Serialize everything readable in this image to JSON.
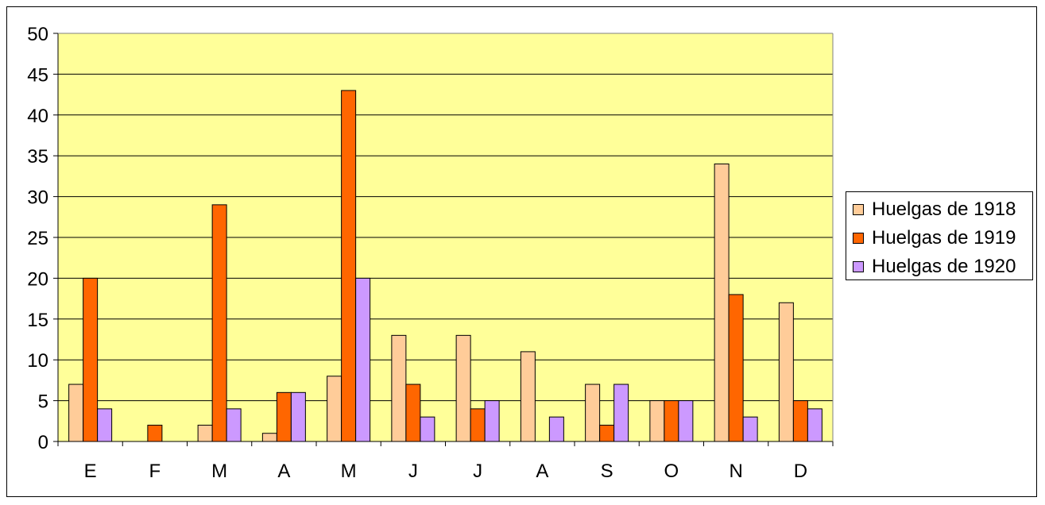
{
  "chart_data": {
    "type": "bar",
    "title": "",
    "xlabel": "",
    "ylabel": "",
    "categories": [
      "E",
      "F",
      "M",
      "A",
      "M",
      "J",
      "J",
      "A",
      "S",
      "O",
      "N",
      "D"
    ],
    "series": [
      {
        "name": "Huelgas de 1918",
        "color": "#FFCC99",
        "values": [
          7,
          0,
          2,
          1,
          8,
          13,
          13,
          11,
          7,
          5,
          34,
          17
        ]
      },
      {
        "name": "Huelgas de 1919",
        "color": "#FF6600",
        "values": [
          20,
          2,
          29,
          6,
          43,
          7,
          4,
          0,
          2,
          5,
          18,
          5
        ]
      },
      {
        "name": "Huelgas de 1920",
        "color": "#CC99FF",
        "values": [
          4,
          0,
          4,
          6,
          20,
          3,
          5,
          3,
          7,
          5,
          3,
          4
        ]
      }
    ],
    "ylim": [
      0,
      50
    ],
    "yticks": [
      0,
      5,
      10,
      15,
      20,
      25,
      30,
      35,
      40,
      45,
      50
    ],
    "grid": true,
    "plot_background": "#FFFF99",
    "legend_position": "right"
  }
}
